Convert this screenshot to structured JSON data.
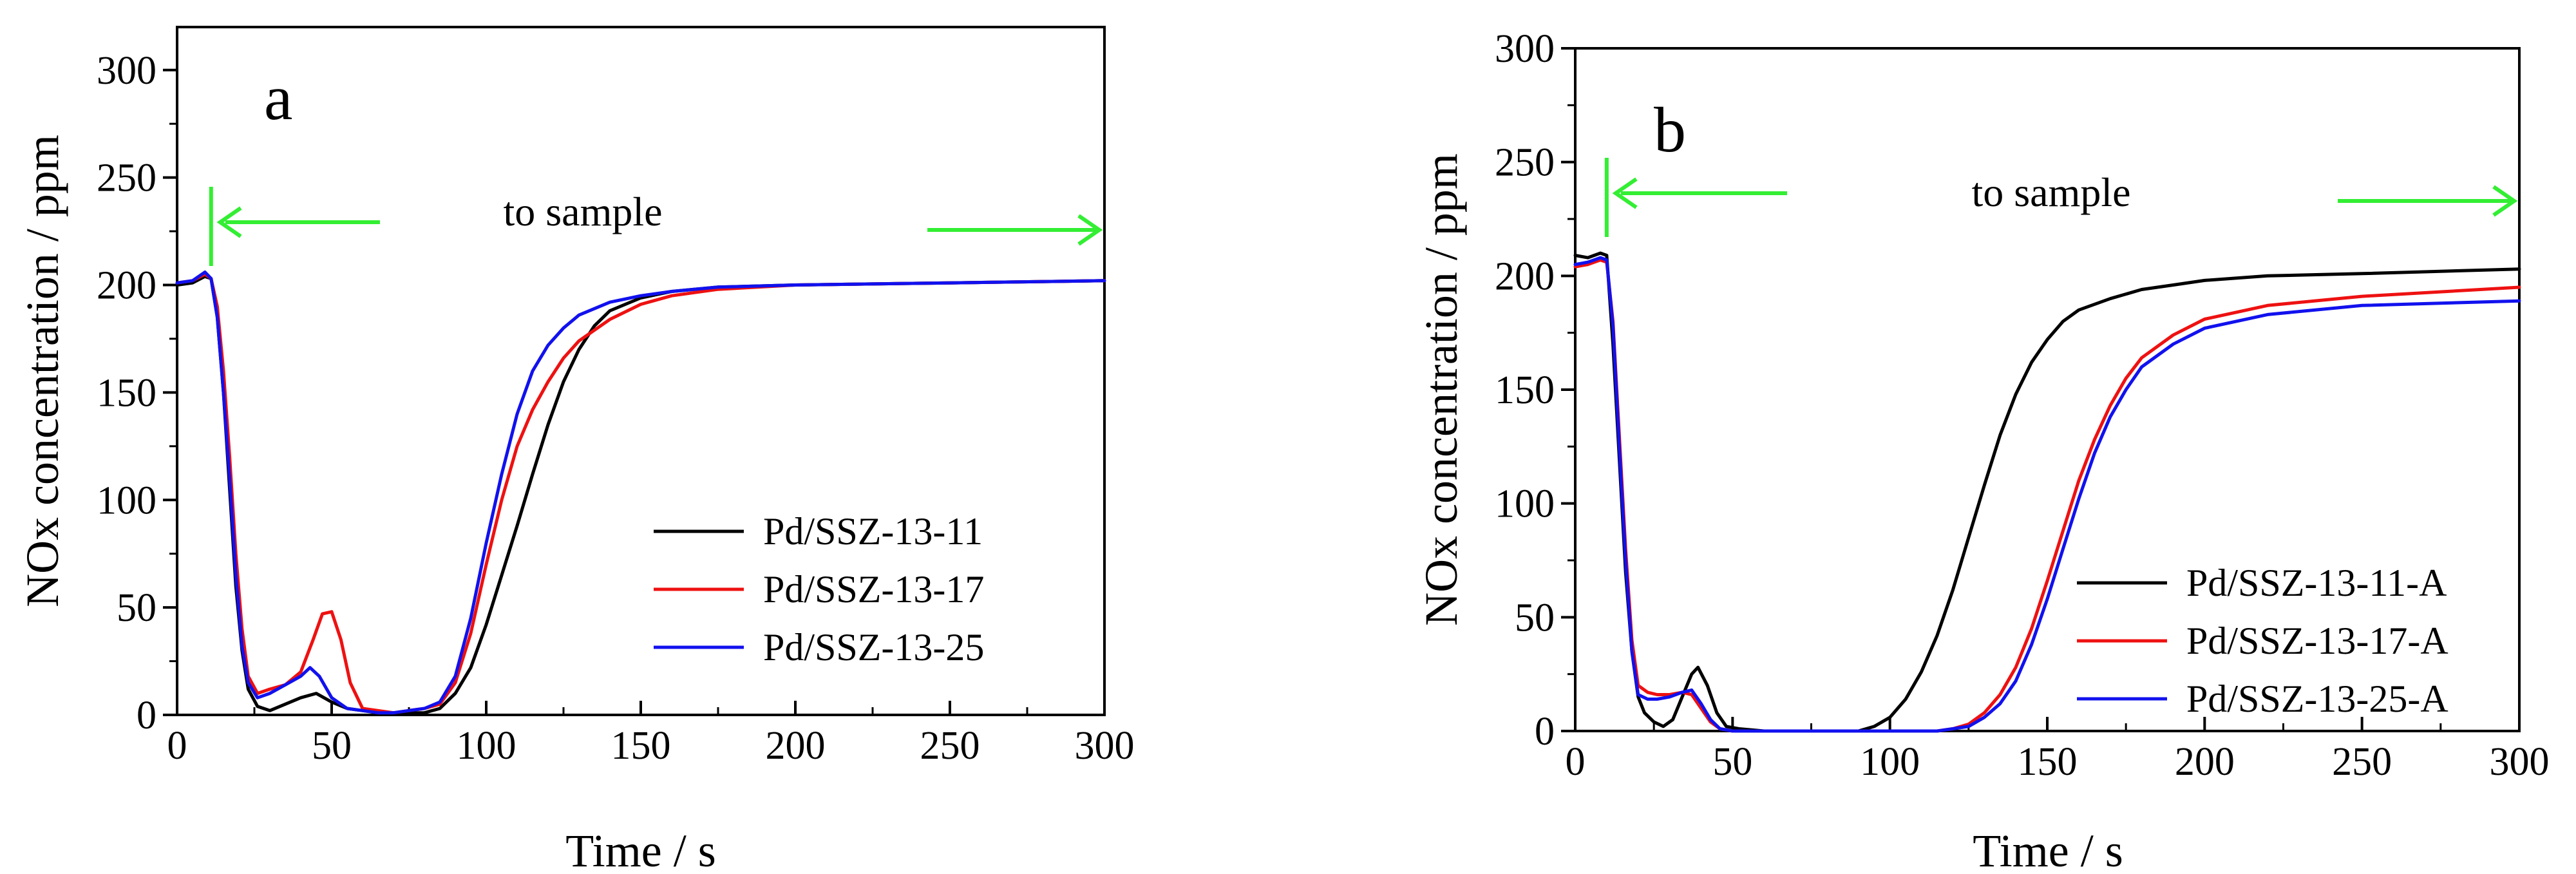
{
  "chart_data": [
    {
      "type": "line",
      "panel_label": "a",
      "xlabel": "Time / s",
      "ylabel": "NOx concentration / ppm",
      "xlim": [
        0,
        300
      ],
      "ylim": [
        0,
        320
      ],
      "xticks": [
        0,
        50,
        100,
        150,
        200,
        250,
        300
      ],
      "yticks": [
        0,
        50,
        100,
        150,
        200,
        250,
        300
      ],
      "annotation": "to sample",
      "annotation_color": "#33ee33",
      "annotation_marker_x": 11,
      "series": [
        {
          "name": " Pd/SSZ-13-11",
          "color": "#000000",
          "x": [
            0,
            5,
            9,
            11,
            13,
            15,
            17,
            19,
            21,
            23,
            26,
            30,
            35,
            40,
            45,
            50,
            55,
            60,
            65,
            70,
            75,
            80,
            85,
            90,
            95,
            100,
            105,
            110,
            115,
            120,
            125,
            130,
            135,
            140,
            150,
            160,
            175,
            200,
            250,
            300
          ],
          "y": [
            200,
            201,
            204,
            203,
            185,
            150,
            105,
            60,
            30,
            12,
            4,
            2,
            5,
            8,
            10,
            6,
            3,
            2,
            1,
            1,
            1,
            1,
            3,
            10,
            22,
            42,
            65,
            88,
            112,
            135,
            155,
            170,
            181,
            188,
            194,
            197,
            199,
            200,
            201,
            202
          ]
        },
        {
          "name": "Pd/SSZ-13-17",
          "color": "#ee1111",
          "x": [
            0,
            5,
            9,
            11,
            13,
            15,
            17,
            19,
            21,
            23,
            26,
            30,
            35,
            40,
            44,
            47,
            50,
            53,
            56,
            60,
            65,
            70,
            75,
            80,
            85,
            90,
            95,
            100,
            105,
            110,
            115,
            120,
            125,
            130,
            140,
            150,
            160,
            175,
            200,
            250,
            300
          ],
          "y": [
            201,
            202,
            205,
            203,
            190,
            160,
            120,
            75,
            40,
            18,
            10,
            12,
            14,
            20,
            35,
            47,
            48,
            35,
            15,
            3,
            2,
            1,
            2,
            3,
            5,
            15,
            38,
            70,
            100,
            125,
            142,
            155,
            166,
            174,
            184,
            191,
            195,
            198,
            200,
            201,
            202
          ]
        },
        {
          "name": "Pd/SSZ-13-25",
          "color": "#1111ee",
          "x": [
            0,
            5,
            9,
            11,
            13,
            15,
            17,
            19,
            21,
            23,
            26,
            30,
            35,
            40,
            43,
            46,
            50,
            55,
            60,
            65,
            70,
            75,
            80,
            85,
            90,
            95,
            100,
            105,
            110,
            115,
            120,
            125,
            130,
            140,
            150,
            160,
            175,
            200,
            250,
            300
          ],
          "y": [
            201,
            202,
            206,
            203,
            185,
            150,
            110,
            65,
            32,
            15,
            8,
            10,
            14,
            18,
            22,
            18,
            8,
            3,
            2,
            1,
            1,
            2,
            3,
            6,
            18,
            45,
            80,
            112,
            140,
            160,
            172,
            180,
            186,
            192,
            195,
            197,
            199,
            200,
            201,
            202
          ]
        }
      ]
    },
    {
      "type": "line",
      "panel_label": "b",
      "xlabel": "Time / s",
      "ylabel": "NOx concentration / ppm",
      "xlim": [
        0,
        300
      ],
      "ylim": [
        0,
        300
      ],
      "xticks": [
        0,
        50,
        100,
        150,
        200,
        250,
        300
      ],
      "yticks": [
        0,
        50,
        100,
        150,
        200,
        250,
        300
      ],
      "annotation": "to sample",
      "annotation_color": "#33ee33",
      "annotation_marker_x": 10,
      "series": [
        {
          "name": "Pd/SSZ-13-11-A",
          "color": "#000000",
          "x": [
            0,
            4,
            8,
            10,
            12,
            14,
            16,
            18,
            20,
            22,
            25,
            28,
            31,
            34,
            37,
            39,
            42,
            45,
            48,
            52,
            60,
            70,
            80,
            90,
            95,
            100,
            105,
            110,
            115,
            120,
            125,
            130,
            135,
            140,
            145,
            150,
            155,
            160,
            170,
            180,
            190,
            200,
            220,
            250,
            300
          ],
          "y": [
            209,
            208,
            210,
            209,
            170,
            120,
            70,
            35,
            15,
            8,
            4,
            2,
            5,
            15,
            25,
            28,
            20,
            8,
            2,
            1,
            0,
            0,
            0,
            0,
            2,
            6,
            14,
            26,
            42,
            62,
            85,
            108,
            130,
            148,
            162,
            172,
            180,
            185,
            190,
            194,
            196,
            198,
            200,
            201,
            203
          ]
        },
        {
          "name": "Pd/SSZ-13-17-A",
          "color": "#ee1111",
          "x": [
            0,
            4,
            8,
            10,
            12,
            14,
            16,
            18,
            20,
            23,
            26,
            30,
            34,
            37,
            40,
            43,
            46,
            50,
            60,
            80,
            100,
            115,
            120,
            125,
            130,
            135,
            140,
            145,
            150,
            155,
            160,
            165,
            170,
            175,
            180,
            190,
            200,
            220,
            250,
            300
          ],
          "y": [
            204,
            205,
            207,
            206,
            180,
            130,
            80,
            40,
            20,
            17,
            16,
            16,
            17,
            16,
            10,
            4,
            1,
            0,
            0,
            0,
            0,
            0,
            1,
            3,
            8,
            16,
            28,
            45,
            66,
            88,
            110,
            128,
            143,
            155,
            164,
            174,
            181,
            187,
            191,
            195
          ]
        },
        {
          "name": "Pd/SSZ-13-25-A",
          "color": "#1111ee",
          "x": [
            0,
            4,
            8,
            10,
            12,
            14,
            16,
            18,
            20,
            23,
            26,
            30,
            34,
            37,
            40,
            43,
            46,
            50,
            60,
            80,
            100,
            115,
            120,
            125,
            130,
            135,
            140,
            145,
            150,
            155,
            160,
            165,
            170,
            175,
            180,
            190,
            200,
            220,
            250,
            300
          ],
          "y": [
            205,
            206,
            208,
            207,
            178,
            125,
            75,
            35,
            16,
            14,
            14,
            15,
            17,
            18,
            12,
            5,
            1,
            0,
            0,
            0,
            0,
            0,
            1,
            2,
            6,
            12,
            22,
            38,
            58,
            80,
            102,
            122,
            138,
            150,
            160,
            170,
            177,
            183,
            187,
            189
          ]
        }
      ]
    }
  ]
}
